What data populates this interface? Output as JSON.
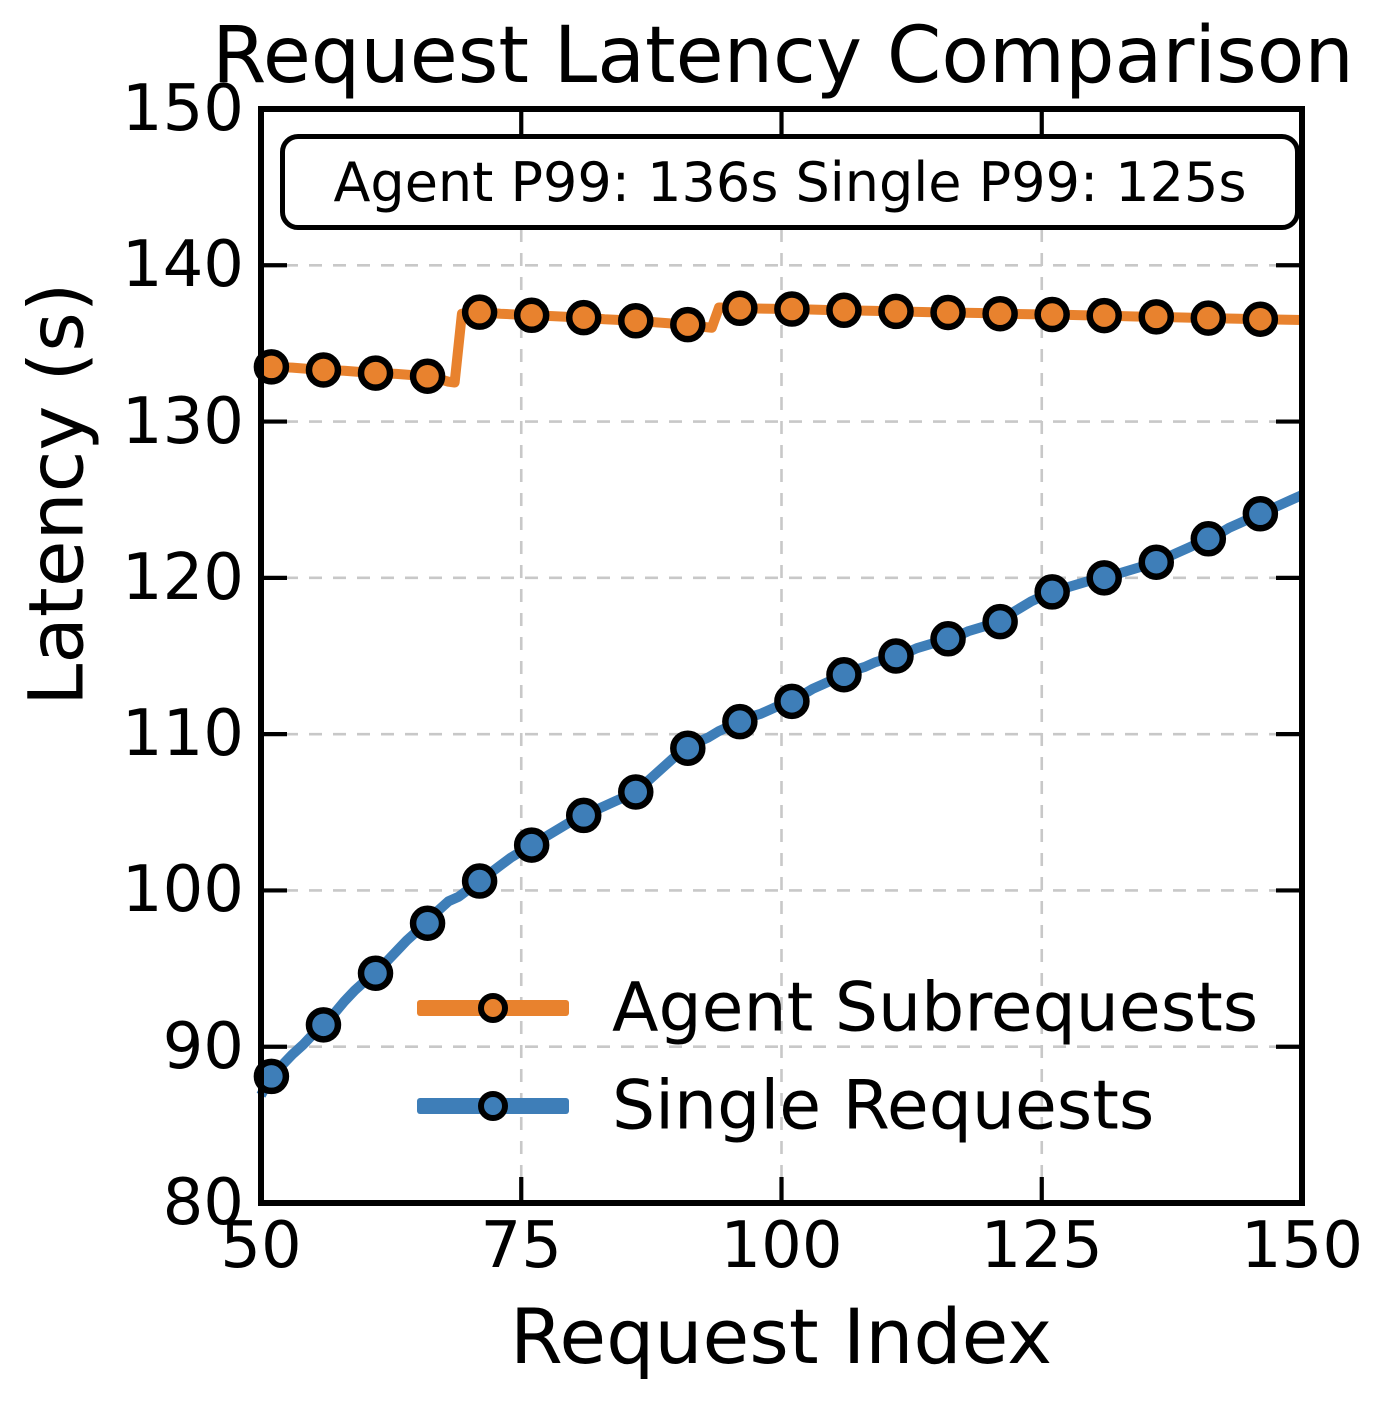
{
  "title": "Request Latency Comparison",
  "chart_data": {
    "type": "line",
    "title": "Request Latency Comparison",
    "xlabel": "Request Index",
    "ylabel": "Latency (s)",
    "xlim": [
      50,
      150
    ],
    "ylim": [
      80,
      150
    ],
    "xticks": [
      50,
      75,
      100,
      125,
      150
    ],
    "yticks": [
      80,
      90,
      100,
      110,
      120,
      130,
      140,
      150
    ],
    "grid": true,
    "grid_color": "#c8c8c8",
    "annotation": "Agent P99: 136s Single P99: 125s",
    "legend_position": "inside lower right, no frame",
    "series": [
      {
        "name": "Agent Subrequests",
        "color": "#E8822E",
        "marker": "o",
        "marker_x": [
          51,
          56,
          61,
          66,
          71,
          76,
          81,
          86,
          91,
          96,
          101,
          106,
          111,
          116,
          121,
          126,
          131,
          136,
          141,
          146
        ],
        "points": [
          [
            50,
            133.55
          ],
          [
            51,
            133.5
          ],
          [
            53,
            133.45
          ],
          [
            55,
            133.35
          ],
          [
            56,
            133.3
          ],
          [
            58,
            133.25
          ],
          [
            60,
            133.15
          ],
          [
            61,
            133.1
          ],
          [
            63,
            133.05
          ],
          [
            65,
            132.95
          ],
          [
            66,
            132.9
          ],
          [
            67,
            132.75
          ],
          [
            68,
            132.55
          ],
          [
            68.6,
            132.5
          ],
          [
            69.3,
            136.9
          ],
          [
            70,
            137.0
          ],
          [
            71,
            137.0
          ],
          [
            73,
            136.9
          ],
          [
            76,
            136.8
          ],
          [
            78,
            136.75
          ],
          [
            81,
            136.65
          ],
          [
            83,
            136.55
          ],
          [
            86,
            136.45
          ],
          [
            88,
            136.35
          ],
          [
            91,
            136.2
          ],
          [
            92,
            136.1
          ],
          [
            93.3,
            136.0
          ],
          [
            94,
            137.3
          ],
          [
            95,
            137.28
          ],
          [
            96,
            137.25
          ],
          [
            99,
            137.22
          ],
          [
            101,
            137.2
          ],
          [
            104,
            137.15
          ],
          [
            106,
            137.12
          ],
          [
            109,
            137.08
          ],
          [
            111,
            137.05
          ],
          [
            114,
            137.0
          ],
          [
            116,
            136.98
          ],
          [
            119,
            136.95
          ],
          [
            121,
            136.9
          ],
          [
            124,
            136.87
          ],
          [
            126,
            136.85
          ],
          [
            129,
            136.8
          ],
          [
            131,
            136.78
          ],
          [
            134,
            136.72
          ],
          [
            136,
            136.7
          ],
          [
            139,
            136.65
          ],
          [
            141,
            136.62
          ],
          [
            144,
            136.58
          ],
          [
            146,
            136.55
          ],
          [
            148,
            136.52
          ],
          [
            150,
            136.5
          ]
        ]
      },
      {
        "name": "Single Requests",
        "color": "#3E7EB8",
        "marker": "o",
        "marker_x": [
          51,
          56,
          61,
          66,
          71,
          76,
          81,
          86,
          91,
          96,
          101,
          106,
          111,
          116,
          121,
          126,
          131,
          136,
          141,
          146
        ],
        "points": [
          [
            50,
            86.9
          ],
          [
            51,
            88.1
          ],
          [
            52,
            88.8
          ],
          [
            53,
            89.5
          ],
          [
            54,
            90.1
          ],
          [
            55,
            90.8
          ],
          [
            56,
            91.4
          ],
          [
            57,
            92.1
          ],
          [
            58,
            92.9
          ],
          [
            59,
            93.6
          ],
          [
            60,
            94.2
          ],
          [
            61,
            94.7
          ],
          [
            62,
            95.4
          ],
          [
            63,
            96.1
          ],
          [
            64,
            96.8
          ],
          [
            65,
            97.4
          ],
          [
            66,
            97.9
          ],
          [
            67,
            98.7
          ],
          [
            68,
            99.3
          ],
          [
            69,
            99.6
          ],
          [
            70,
            100.1
          ],
          [
            71,
            100.6
          ],
          [
            72,
            101.1
          ],
          [
            73,
            101.6
          ],
          [
            74,
            102.1
          ],
          [
            75,
            102.5
          ],
          [
            76,
            102.9
          ],
          [
            77,
            103.3
          ],
          [
            78,
            103.7
          ],
          [
            79,
            104.1
          ],
          [
            80,
            104.5
          ],
          [
            81,
            104.8
          ],
          [
            82,
            105.1
          ],
          [
            83,
            105.4
          ],
          [
            84,
            105.7
          ],
          [
            85,
            106.0
          ],
          [
            86,
            106.3
          ],
          [
            87,
            106.9
          ],
          [
            88,
            107.5
          ],
          [
            89,
            108.1
          ],
          [
            90,
            108.7
          ],
          [
            91,
            109.1
          ],
          [
            92,
            109.5
          ],
          [
            93,
            109.8
          ],
          [
            94,
            110.2
          ],
          [
            95,
            110.5
          ],
          [
            96,
            110.8
          ],
          [
            97,
            111.1
          ],
          [
            98,
            111.3
          ],
          [
            99,
            111.6
          ],
          [
            100,
            111.9
          ],
          [
            101,
            112.1
          ],
          [
            102,
            112.5
          ],
          [
            103,
            112.9
          ],
          [
            104,
            113.2
          ],
          [
            105,
            113.5
          ],
          [
            106,
            113.8
          ],
          [
            107,
            114.1
          ],
          [
            108,
            114.3
          ],
          [
            109,
            114.6
          ],
          [
            110,
            114.8
          ],
          [
            111,
            115.0
          ],
          [
            112,
            115.2
          ],
          [
            113,
            115.5
          ],
          [
            114,
            115.7
          ],
          [
            115,
            115.9
          ],
          [
            116,
            116.1
          ],
          [
            117,
            116.3
          ],
          [
            118,
            116.6
          ],
          [
            119,
            116.8
          ],
          [
            120,
            117.0
          ],
          [
            121,
            117.2
          ],
          [
            122,
            117.7
          ],
          [
            123,
            118.1
          ],
          [
            124,
            118.5
          ],
          [
            125,
            118.8
          ],
          [
            126,
            119.1
          ],
          [
            127,
            119.3
          ],
          [
            128,
            119.5
          ],
          [
            129,
            119.7
          ],
          [
            130,
            119.9
          ],
          [
            131,
            120.0
          ],
          [
            132,
            120.2
          ],
          [
            133,
            120.4
          ],
          [
            134,
            120.6
          ],
          [
            135,
            120.8
          ],
          [
            136,
            121.0
          ],
          [
            137,
            121.3
          ],
          [
            138,
            121.6
          ],
          [
            139,
            121.9
          ],
          [
            140,
            122.2
          ],
          [
            141,
            122.5
          ],
          [
            142,
            122.8
          ],
          [
            143,
            123.2
          ],
          [
            144,
            123.5
          ],
          [
            145,
            123.8
          ],
          [
            146,
            124.1
          ],
          [
            147,
            124.4
          ],
          [
            148,
            124.7
          ],
          [
            149,
            125.0
          ],
          [
            150,
            125.3
          ]
        ]
      }
    ],
    "p99_summary": {
      "agent_p99_s": 136,
      "single_p99_s": 125
    }
  }
}
